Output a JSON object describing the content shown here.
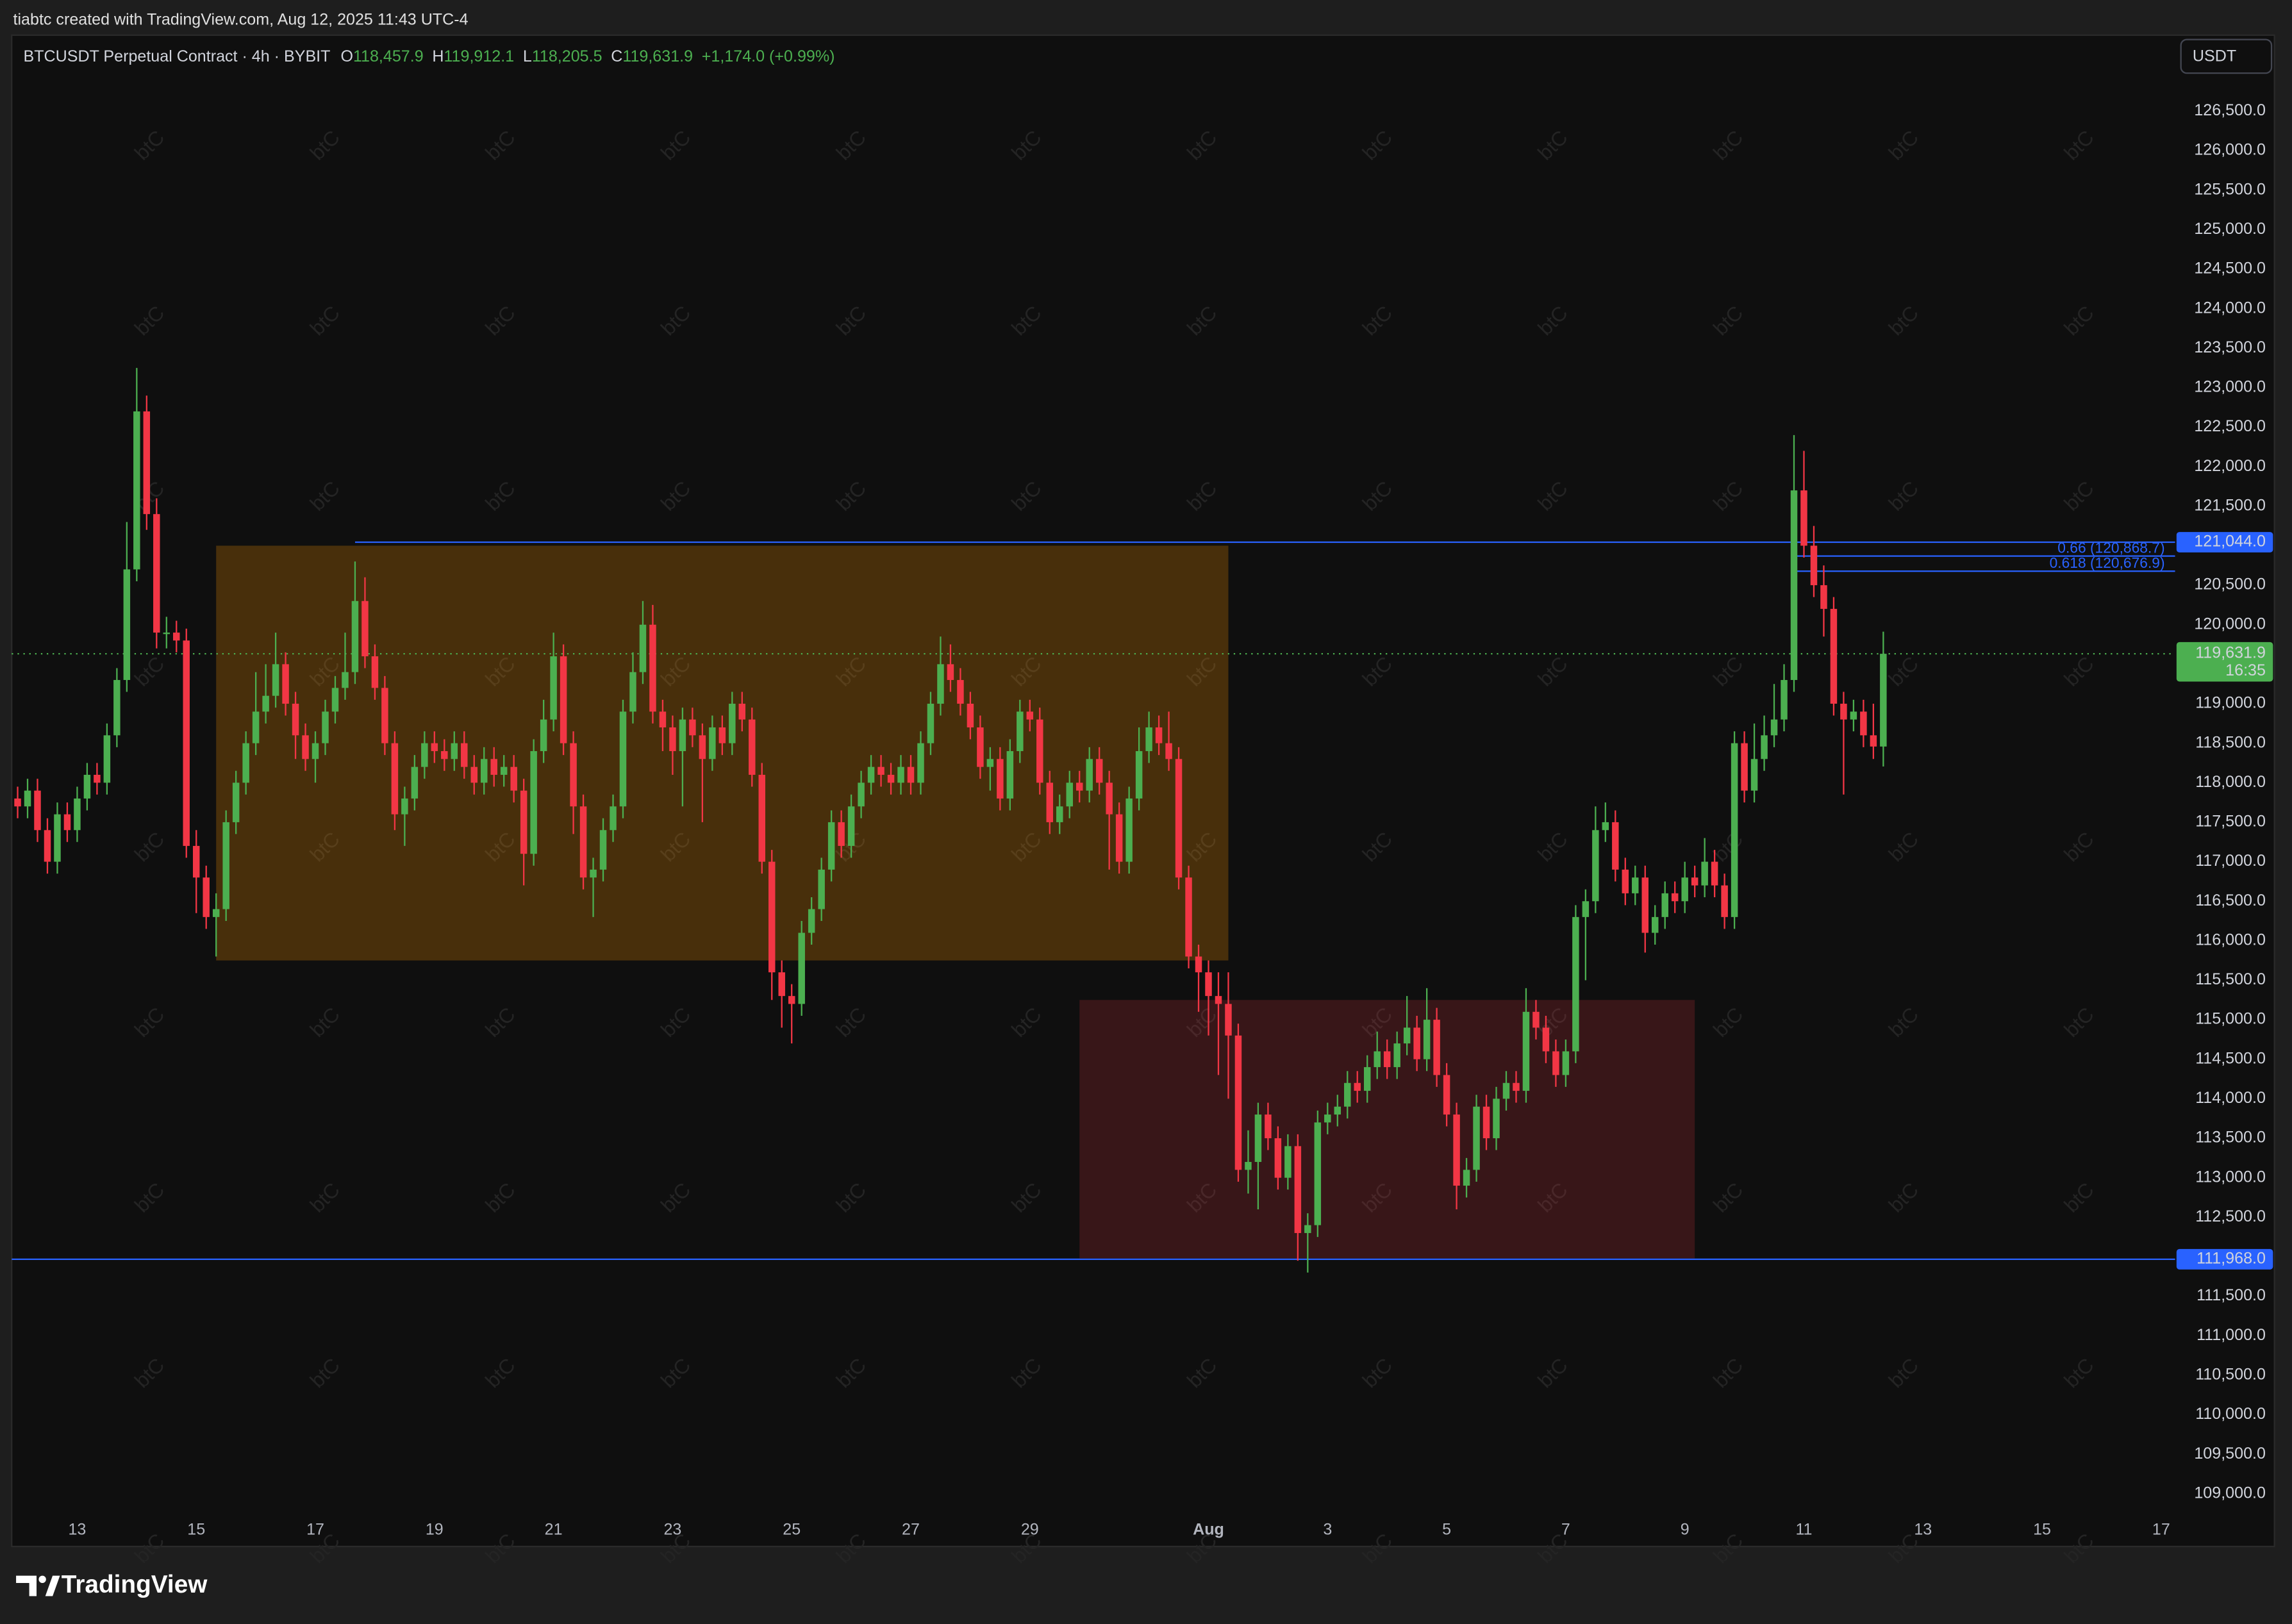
{
  "header": {
    "text": "tiabtc created with TradingView.com, Aug 12, 2025 11:43 UTC-4"
  },
  "footer": {
    "brand": "TradingView"
  },
  "chart_data": {
    "type": "candlestick",
    "legend": {
      "title": "BTCUSDT Perpetual Contract · 4h · BYBIT",
      "ohlc": [
        {
          "key": "O",
          "value": "118,457.9"
        },
        {
          "key": "H",
          "value": "119,912.1"
        },
        {
          "key": "L",
          "value": "118,205.5"
        },
        {
          "key": "C",
          "value": "119,631.9"
        }
      ],
      "change": "+1,174.0 (+0.99%)"
    },
    "currency": "USDT",
    "watermark": "btC",
    "up_color": "#4caf50",
    "down_color": "#f23645",
    "grid": false,
    "open": [
      117800,
      117700,
      117900,
      117400,
      117000,
      117600,
      117400,
      117800,
      118100,
      118000,
      118600,
      119300,
      120700,
      122700,
      121400,
      119900,
      119900,
      119800,
      117200,
      116800,
      116300,
      116400,
      117500,
      118000,
      118500,
      118900,
      119100,
      119500,
      119000,
      118600,
      118300,
      118500,
      118900,
      119200,
      119400,
      120300,
      119600,
      119200,
      118500,
      117600,
      117800,
      118200,
      118500,
      118400,
      118300,
      118500,
      118200,
      118000,
      118300,
      118100,
      118200,
      117900,
      117100,
      118400,
      118800,
      119600,
      118500,
      117700,
      116800,
      116900,
      117400,
      117700,
      118900,
      119400,
      120000,
      118900,
      118700,
      118400,
      118800,
      118600,
      118300,
      118700,
      118500,
      119000,
      118800,
      118100,
      117000,
      115600,
      115300,
      115200,
      116100,
      116400,
      116900,
      117500,
      117200,
      117700,
      118000,
      118200,
      118100,
      118000,
      118200,
      118000,
      118500,
      119000,
      119500,
      119300,
      119000,
      118700,
      118200,
      118300,
      117800,
      118400,
      118900,
      118800,
      118000,
      117500,
      117700,
      118000,
      117900,
      118300,
      118000,
      117600,
      117000,
      117800,
      118400,
      118700,
      118500,
      118300,
      116800,
      115800,
      115600,
      115300,
      115200,
      114800,
      113100,
      113200,
      113800,
      113500,
      113000,
      113400,
      112300,
      112400,
      113700,
      113800,
      113900,
      114200,
      114100,
      114400,
      114600,
      114400,
      114700,
      114900,
      114500,
      115000,
      114300,
      113800,
      112900,
      113100,
      113900,
      113500,
      114000,
      114200,
      114100,
      115100,
      114900,
      114600,
      114300,
      114600,
      116300,
      116500,
      117400,
      117500,
      116900,
      116600,
      116800,
      116100,
      116300,
      116600,
      116500,
      116800,
      116700,
      117000,
      116700,
      116300,
      118500,
      117900,
      118300,
      118600,
      118800,
      119300,
      121700,
      121000,
      120500,
      120200,
      119000,
      118800,
      118900,
      118600,
      118457.9
    ],
    "high": [
      117950,
      118050,
      118050,
      117550,
      117750,
      117750,
      117950,
      118250,
      118250,
      118750,
      119450,
      121300,
      123250,
      122900,
      121600,
      120100,
      120050,
      119950,
      117400,
      116950,
      116600,
      117650,
      118150,
      118650,
      119400,
      119500,
      119900,
      119650,
      119150,
      118750,
      118650,
      119050,
      119350,
      119900,
      120800,
      120600,
      119750,
      119350,
      118650,
      117950,
      118350,
      118650,
      118650,
      118550,
      118650,
      118650,
      118350,
      118450,
      118450,
      118350,
      118350,
      118050,
      118550,
      119050,
      119900,
      119750,
      118650,
      117850,
      117050,
      117550,
      117850,
      119050,
      119650,
      120300,
      120250,
      119050,
      118850,
      118950,
      118950,
      118750,
      118850,
      118850,
      119150,
      119150,
      118950,
      118250,
      117150,
      115750,
      115450,
      116250,
      116550,
      117050,
      117650,
      117650,
      117850,
      118150,
      118350,
      118350,
      118250,
      118350,
      118350,
      118650,
      119150,
      119850,
      119750,
      119450,
      119150,
      118850,
      118450,
      118450,
      118550,
      119050,
      119050,
      118950,
      118150,
      117850,
      118150,
      118150,
      118450,
      118450,
      118150,
      117750,
      117950,
      118700,
      118900,
      118850,
      118900,
      118450,
      116950,
      115950,
      115750,
      115600,
      115600,
      114950,
      113600,
      113950,
      113950,
      113650,
      113550,
      113550,
      112550,
      113850,
      113950,
      114050,
      114350,
      114350,
      114550,
      114850,
      114750,
      114850,
      115300,
      115050,
      115400,
      115150,
      114450,
      113950,
      113250,
      114050,
      114050,
      114150,
      114350,
      114350,
      115400,
      115250,
      115050,
      114750,
      114750,
      116450,
      116650,
      117700,
      117750,
      117650,
      117050,
      116950,
      116950,
      116450,
      116750,
      116750,
      117000,
      116950,
      117300,
      117150,
      116850,
      118650,
      118650,
      118750,
      118850,
      119250,
      119500,
      122400,
      122200,
      121250,
      120750,
      120350,
      119150,
      119050,
      119050,
      119000,
      119912.1
    ],
    "low": [
      117550,
      117550,
      117250,
      116850,
      116850,
      117250,
      117250,
      117650,
      117850,
      117850,
      118450,
      119150,
      120550,
      121200,
      119700,
      119700,
      119650,
      117050,
      116350,
      116150,
      115800,
      116250,
      117350,
      117850,
      118350,
      118750,
      118950,
      118850,
      118300,
      118150,
      118000,
      118350,
      118750,
      119050,
      119250,
      119450,
      119050,
      118350,
      117400,
      117200,
      117650,
      118050,
      118250,
      118150,
      118150,
      118050,
      117850,
      117850,
      117950,
      117950,
      117750,
      116700,
      116950,
      118250,
      118650,
      118350,
      117350,
      116650,
      116300,
      116750,
      117250,
      117550,
      118750,
      119250,
      118750,
      118400,
      118100,
      117700,
      118450,
      117500,
      118150,
      118350,
      118350,
      118650,
      117950,
      116850,
      115250,
      114900,
      114700,
      115050,
      115950,
      116250,
      116750,
      117050,
      117050,
      117550,
      117850,
      117950,
      117850,
      117850,
      117850,
      117850,
      118350,
      118850,
      119150,
      118850,
      118550,
      118050,
      117900,
      117650,
      117650,
      118250,
      118650,
      117850,
      117350,
      117350,
      117550,
      117750,
      117750,
      117850,
      116900,
      116850,
      116850,
      117650,
      118250,
      118350,
      118150,
      116650,
      115650,
      115100,
      114800,
      114300,
      114000,
      112950,
      112800,
      112600,
      113350,
      112850,
      112850,
      111950,
      111800,
      112250,
      113550,
      113650,
      113750,
      113950,
      113950,
      114250,
      114250,
      114250,
      114550,
      114350,
      114350,
      114150,
      113650,
      112600,
      112750,
      112950,
      113350,
      113350,
      113850,
      113950,
      113950,
      114750,
      114450,
      114150,
      114150,
      114450,
      115500,
      116350,
      117250,
      116750,
      116450,
      116450,
      115850,
      115950,
      116150,
      116350,
      116350,
      116550,
      116550,
      116550,
      116150,
      116150,
      117750,
      117750,
      118150,
      118450,
      118650,
      119150,
      120850,
      120350,
      119850,
      118850,
      117850,
      118650,
      118450,
      118300,
      118205.5
    ],
    "close": [
      117700,
      117900,
      117400,
      117000,
      117600,
      117400,
      117800,
      118100,
      118000,
      118600,
      119300,
      120700,
      122700,
      121400,
      119900,
      119900,
      119800,
      117200,
      116800,
      116300,
      116400,
      117500,
      118000,
      118500,
      118900,
      119100,
      119500,
      119000,
      118600,
      118300,
      118500,
      118900,
      119200,
      119400,
      120300,
      119600,
      119200,
      118500,
      117600,
      117800,
      118200,
      118500,
      118400,
      118300,
      118500,
      118200,
      118000,
      118300,
      118100,
      118200,
      117900,
      117100,
      118400,
      118800,
      119600,
      118500,
      117700,
      116800,
      116900,
      117400,
      117700,
      118900,
      119400,
      120000,
      118900,
      118700,
      118400,
      118800,
      118600,
      118300,
      118700,
      118500,
      119000,
      118800,
      118100,
      117000,
      115600,
      115300,
      115200,
      116100,
      116400,
      116900,
      117500,
      117200,
      117700,
      118000,
      118200,
      118100,
      118000,
      118200,
      118000,
      118500,
      119000,
      119500,
      119300,
      119000,
      118700,
      118200,
      118300,
      117800,
      118400,
      118900,
      118800,
      118000,
      117500,
      117700,
      118000,
      117900,
      118300,
      118000,
      117600,
      117000,
      117800,
      118400,
      118700,
      118500,
      118300,
      116800,
      115800,
      115600,
      115300,
      115200,
      114800,
      113100,
      113200,
      113800,
      113500,
      113000,
      113400,
      112300,
      112400,
      113700,
      113800,
      113900,
      114200,
      114100,
      114400,
      114600,
      114400,
      114700,
      114900,
      114500,
      115000,
      114300,
      113800,
      112900,
      113100,
      113900,
      113500,
      114000,
      114200,
      114100,
      115100,
      114900,
      114600,
      114300,
      114600,
      116300,
      116500,
      117400,
      117500,
      116900,
      116600,
      116800,
      116100,
      116300,
      116600,
      116500,
      116800,
      116700,
      117000,
      116700,
      116300,
      118500,
      117900,
      118300,
      118600,
      118800,
      119300,
      121700,
      121000,
      120500,
      120200,
      119000,
      118800,
      118900,
      118600,
      118457.9,
      119631.9
    ],
    "xlim": [
      -0.6,
      217.4
    ],
    "xticks": [
      {
        "value": 6,
        "label": "13"
      },
      {
        "value": 18,
        "label": "15"
      },
      {
        "value": 30,
        "label": "17"
      },
      {
        "value": 42,
        "label": "19"
      },
      {
        "value": 54,
        "label": "21"
      },
      {
        "value": 66,
        "label": "23"
      },
      {
        "value": 78,
        "label": "25"
      },
      {
        "value": 90,
        "label": "27"
      },
      {
        "value": 102,
        "label": "29"
      },
      {
        "value": 120,
        "label": "Aug"
      },
      {
        "value": 132,
        "label": "3"
      },
      {
        "value": 144,
        "label": "5"
      },
      {
        "value": 156,
        "label": "7"
      },
      {
        "value": 168,
        "label": "9"
      },
      {
        "value": 180,
        "label": "11"
      },
      {
        "value": 192,
        "label": "13"
      },
      {
        "value": 204,
        "label": "15"
      },
      {
        "value": 216,
        "label": "17"
      }
    ],
    "ylim": [
      108333,
      127462
    ],
    "yticks": [
      {
        "value": 109000,
        "label": "109,000.0"
      },
      {
        "value": 109500,
        "label": "109,500.0"
      },
      {
        "value": 110000,
        "label": "110,000.0"
      },
      {
        "value": 110500,
        "label": "110,500.0"
      },
      {
        "value": 111000,
        "label": "111,000.0"
      },
      {
        "value": 111500,
        "label": "111,500.0"
      },
      {
        "value": 112000,
        "label": "112,000.0"
      },
      {
        "value": 112500,
        "label": "112,500.0"
      },
      {
        "value": 113000,
        "label": "113,000.0"
      },
      {
        "value": 113500,
        "label": "113,500.0"
      },
      {
        "value": 114000,
        "label": "114,000.0"
      },
      {
        "value": 114500,
        "label": "114,500.0"
      },
      {
        "value": 115000,
        "label": "115,000.0"
      },
      {
        "value": 115500,
        "label": "115,500.0"
      },
      {
        "value": 116000,
        "label": "116,000.0"
      },
      {
        "value": 116500,
        "label": "116,500.0"
      },
      {
        "value": 117000,
        "label": "117,000.0"
      },
      {
        "value": 117500,
        "label": "117,500.0"
      },
      {
        "value": 118000,
        "label": "118,000.0"
      },
      {
        "value": 118500,
        "label": "118,500.0"
      },
      {
        "value": 119000,
        "label": "119,000.0"
      },
      {
        "value": 119500,
        "label": "119,500.0"
      },
      {
        "value": 120000,
        "label": "120,000.0"
      },
      {
        "value": 120500,
        "label": "120,500.0"
      },
      {
        "value": 121000,
        "label": "121,000.0"
      },
      {
        "value": 121500,
        "label": "121,500.0"
      },
      {
        "value": 122000,
        "label": "122,000.0"
      },
      {
        "value": 122500,
        "label": "122,500.0"
      },
      {
        "value": 123000,
        "label": "123,000.0"
      },
      {
        "value": 123500,
        "label": "123,500.0"
      },
      {
        "value": 124000,
        "label": "124,000.0"
      },
      {
        "value": 124500,
        "label": "124,500.0"
      },
      {
        "value": 125000,
        "label": "125,000.0"
      },
      {
        "value": 125500,
        "label": "125,500.0"
      },
      {
        "value": 126000,
        "label": "126,000.0"
      },
      {
        "value": 126500,
        "label": "126,500.0"
      }
    ],
    "zones": [
      {
        "start": 20,
        "end": 122,
        "top": 121000,
        "bottom": 115750,
        "color": "#ff9800"
      },
      {
        "start": 107,
        "end": 169,
        "top": 115250,
        "bottom": 111980,
        "color": "#f23645"
      }
    ],
    "levels": [
      {
        "value": 121044,
        "label": "121,044.0",
        "start": 34,
        "color": "#2962ff"
      },
      {
        "value": 111968,
        "label": "111,968.0",
        "color": "#2962ff"
      }
    ],
    "fib_levels": [
      {
        "value": 120868.7,
        "label": "0.66 (120,868.7)",
        "start": 179
      },
      {
        "value": 120676.9,
        "label": "0.618 (120,676.9)",
        "start": 179
      }
    ],
    "fib_color": "#2962ff",
    "last_price": {
      "value": 119631.9,
      "label": "119,631.9",
      "countdown": "16:35",
      "color": "#4caf50"
    }
  }
}
